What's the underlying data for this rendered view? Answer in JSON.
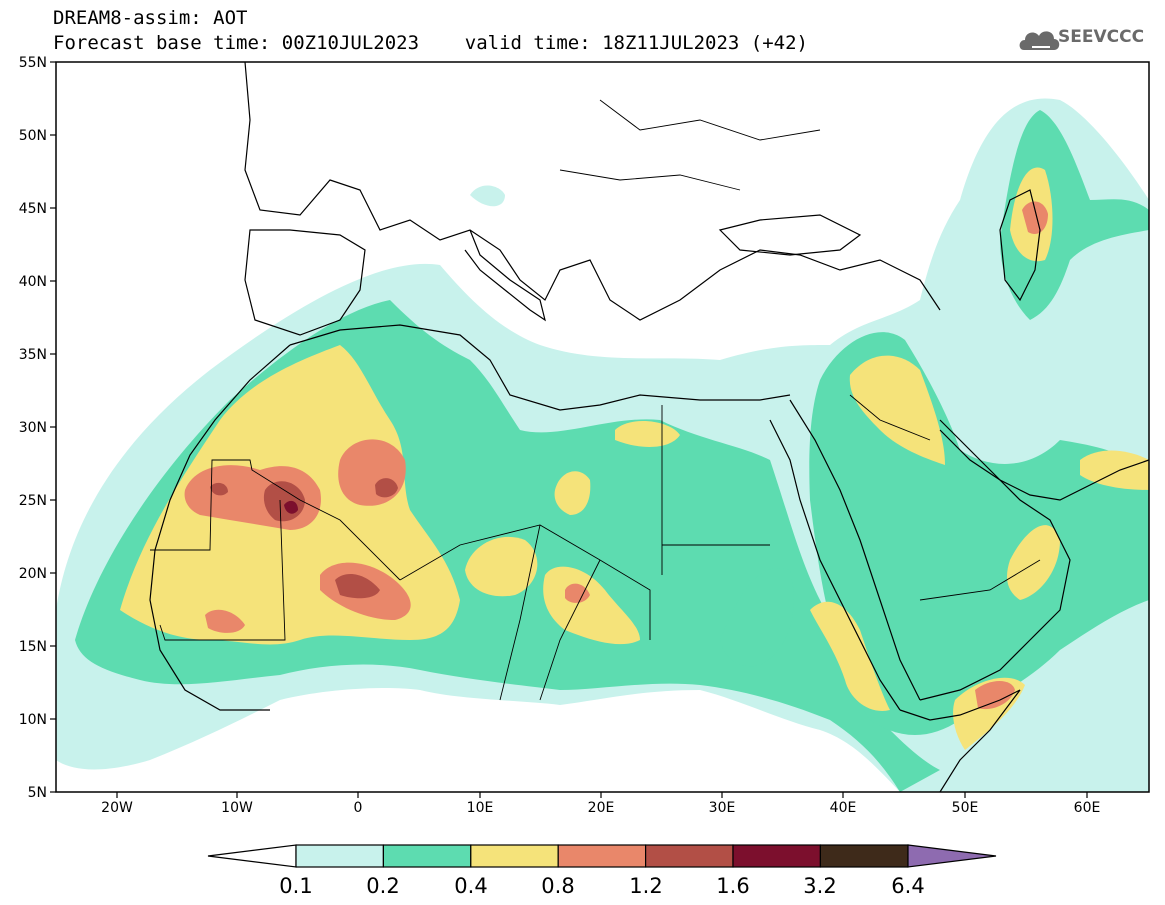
{
  "header": {
    "line1": "DREAM8-assim: AOT",
    "line2": "Forecast base time: 00Z10JUL2023    valid time: 18Z11JUL2023 (+42)"
  },
  "logo": {
    "text": "SEEVCCC",
    "icon": "cloud-icon"
  },
  "map": {
    "lat_labels": [
      "55N",
      "50N",
      "45N",
      "40N",
      "35N",
      "30N",
      "25N",
      "20N",
      "15N",
      "10N",
      "5N"
    ],
    "lon_labels": [
      "20W",
      "10W",
      "0",
      "10E",
      "20E",
      "30E",
      "40E",
      "50E",
      "60E"
    ]
  },
  "colorbar": {
    "levels": [
      "0.1",
      "0.2",
      "0.4",
      "0.8",
      "1.2",
      "1.6",
      "3.2",
      "6.4"
    ],
    "colors": [
      "#ffffff",
      "#c8f2ec",
      "#5ddcb0",
      "#f5e37a",
      "#e9876a",
      "#b24f46",
      "#7c0f2d",
      "#3e2a1a",
      "#8e6bb0"
    ]
  },
  "palette": {
    "c1": "#c8f2ec",
    "c2": "#5ddcb0",
    "c3": "#f5e37a",
    "c4": "#e9876a",
    "c5": "#b24f46",
    "c6": "#7c0f2d"
  }
}
